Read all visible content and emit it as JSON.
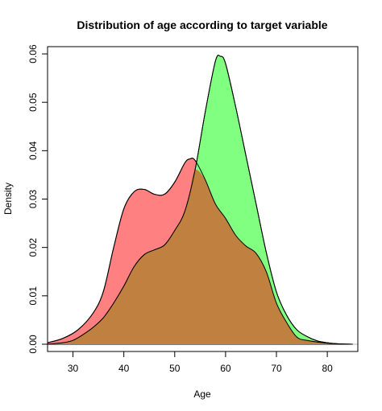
{
  "chart_data": {
    "type": "area",
    "title": "Distribution of age according to target variable",
    "xlabel": "Age",
    "ylabel": "Density",
    "xlim": [
      25,
      86
    ],
    "ylim": [
      -0.0015,
      0.0615
    ],
    "x_ticks": [
      30,
      40,
      50,
      60,
      70,
      80
    ],
    "y_ticks": [
      0.0,
      0.01,
      0.02,
      0.03,
      0.04,
      0.05,
      0.06
    ],
    "y_tick_labels": [
      "0.00",
      "0.01",
      "0.02",
      "0.03",
      "0.04",
      "0.05",
      "0.06"
    ],
    "grid": false,
    "legend": "none",
    "series": [
      {
        "color": "#ff8080",
        "points": [
          [
            25,
            0.0003
          ],
          [
            28,
            0.0012
          ],
          [
            31,
            0.003
          ],
          [
            34,
            0.0065
          ],
          [
            36,
            0.011
          ],
          [
            38,
            0.02
          ],
          [
            40,
            0.028
          ],
          [
            42,
            0.0315
          ],
          [
            44,
            0.032
          ],
          [
            46,
            0.031
          ],
          [
            48,
            0.031
          ],
          [
            50,
            0.0335
          ],
          [
            52,
            0.0375
          ],
          [
            53,
            0.0383
          ],
          [
            54,
            0.038
          ],
          [
            56,
            0.034
          ],
          [
            58,
            0.029
          ],
          [
            60,
            0.026
          ],
          [
            62,
            0.0225
          ],
          [
            64,
            0.0203
          ],
          [
            66,
            0.0188
          ],
          [
            68,
            0.015
          ],
          [
            70,
            0.0085
          ],
          [
            72,
            0.0045
          ],
          [
            74,
            0.0015
          ],
          [
            76,
            0.0008
          ],
          [
            80,
            0.0002
          ],
          [
            83,
            0
          ]
        ]
      },
      {
        "color": "#80ff80",
        "points": [
          [
            25,
            0
          ],
          [
            28,
            0.0003
          ],
          [
            30,
            0.0008
          ],
          [
            32,
            0.002
          ],
          [
            34,
            0.0035
          ],
          [
            36,
            0.0055
          ],
          [
            38,
            0.0085
          ],
          [
            40,
            0.012
          ],
          [
            42,
            0.016
          ],
          [
            44,
            0.0185
          ],
          [
            46,
            0.0195
          ],
          [
            48,
            0.0205
          ],
          [
            50,
            0.0235
          ],
          [
            52,
            0.0275
          ],
          [
            54,
            0.036
          ],
          [
            56,
            0.048
          ],
          [
            58,
            0.0585
          ],
          [
            59,
            0.0595
          ],
          [
            60,
            0.058
          ],
          [
            62,
            0.049
          ],
          [
            64,
            0.039
          ],
          [
            66,
            0.029
          ],
          [
            68,
            0.019
          ],
          [
            70,
            0.0108
          ],
          [
            72,
            0.006
          ],
          [
            74,
            0.003
          ],
          [
            76,
            0.0016
          ],
          [
            78,
            0.0007
          ],
          [
            80,
            0.0003
          ],
          [
            82,
            0.0001
          ],
          [
            85,
            0
          ]
        ]
      }
    ],
    "overlap_color": "#c0803f"
  }
}
